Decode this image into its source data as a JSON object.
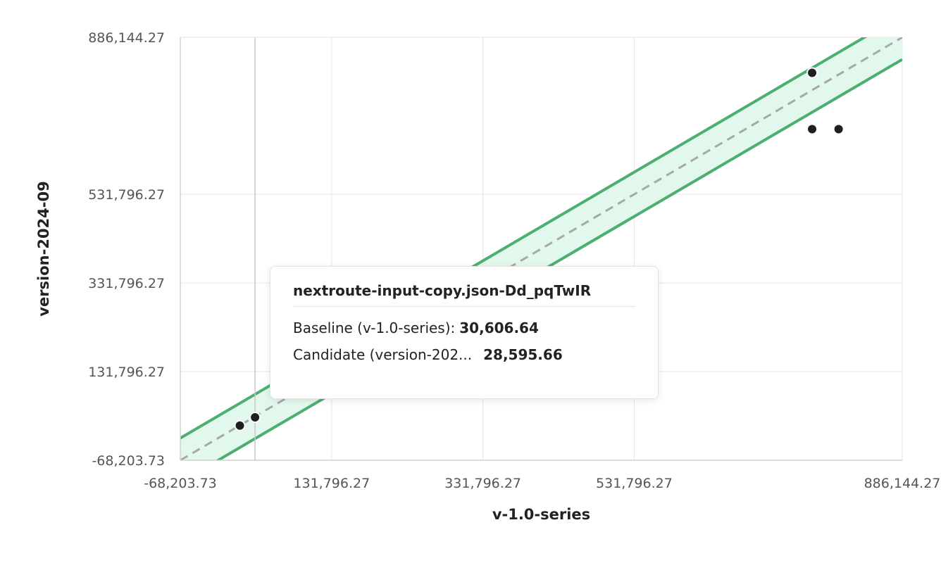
{
  "chart_data": {
    "type": "scatter",
    "xlabel": "v-1.0-series",
    "ylabel": "version-2024-09",
    "xlim": [
      -68203.73,
      886144.27
    ],
    "ylim": [
      -68203.73,
      886144.27
    ],
    "x_ticks": [
      {
        "value": -68203.73,
        "label": "-68,203.73"
      },
      {
        "value": 131796.27,
        "label": "131,796.27"
      },
      {
        "value": 331796.27,
        "label": "331,796.27"
      },
      {
        "value": 531796.27,
        "label": "531,796.27"
      },
      {
        "value": 886144.27,
        "label": "886,144.27"
      }
    ],
    "y_ticks": [
      {
        "value": -68203.73,
        "label": "-68,203.73"
      },
      {
        "value": 131796.27,
        "label": "131,796.27"
      },
      {
        "value": 331796.27,
        "label": "331,796.27"
      },
      {
        "value": 531796.27,
        "label": "531,796.27"
      },
      {
        "value": 886144.27,
        "label": "886,144.27"
      }
    ],
    "grid": true,
    "reference_line": {
      "slope": 1,
      "intercept": 0,
      "style": "dashed"
    },
    "band": {
      "lower_slope": 1,
      "lower_intercept": -50000,
      "upper_slope": 1,
      "upper_intercept": 50000
    },
    "points": [
      {
        "x": 10500,
        "y": 10000
      },
      {
        "x": 30606.64,
        "y": 28595.66
      },
      {
        "x": 767000,
        "y": 806000
      },
      {
        "x": 767000,
        "y": 679000
      },
      {
        "x": 802000,
        "y": 679000
      }
    ],
    "hover_x": 30606.64,
    "colors": {
      "band_fill": "#e3f8ec",
      "band_line": "#4caf72",
      "reference": "#a8a8a8",
      "point": "#1f1f1f",
      "grid": "#e6e6e6"
    }
  },
  "tooltip": {
    "title": "nextroute-input-copy.json-Dd_pqTwIR",
    "baseline_label": "Baseline (v-1.0-series):",
    "baseline_value": "30,606.64",
    "candidate_label": "Candidate (version-202...",
    "candidate_value": "28,595.66"
  }
}
